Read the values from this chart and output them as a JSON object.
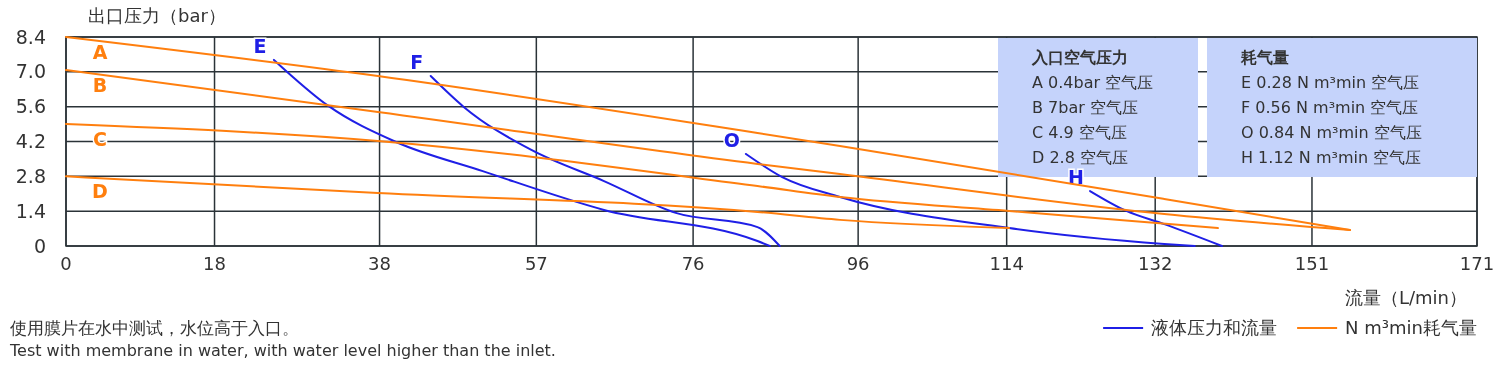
{
  "chart_data": {
    "type": "line",
    "xlabel": "流量（L/min）",
    "ylabel": "出口压力（bar）",
    "xlim": [
      0,
      171
    ],
    "xticks": [
      0,
      18,
      38,
      57,
      76,
      96,
      114,
      132,
      151,
      171
    ],
    "ylim": [
      0,
      8.4
    ],
    "yticks": [
      0,
      1.4,
      2.8,
      4.2,
      5.6,
      {
        "value": 7,
        "label": "7.0"
      },
      8.4
    ],
    "grid": true,
    "marker": "none",
    "line_style": "solid",
    "series": [
      {
        "name": "E",
        "color": "#1f1fe6",
        "x": [
          25.2,
          31.8,
          40,
          50.5,
          65.2,
          83.8,
          85.3
        ],
        "values": [
          7.48,
          5.63,
          4.18,
          3.01,
          1.45,
          0.2,
          0
        ]
      },
      {
        "name": "F",
        "color": "#1f1fe6",
        "x": [
          44.2,
          48.2,
          56.4,
          65.2,
          73.9,
          83.8,
          86.5
        ],
        "values": [
          6.83,
          5.59,
          3.86,
          2.61,
          1.33,
          0.76,
          0
        ]
      },
      {
        "name": "O",
        "color": "#1f1fe6",
        "x": [
          82.4,
          86.8,
          93.8,
          114.3,
          133.1,
          136.8
        ],
        "values": [
          3.7,
          2.77,
          1.97,
          0.72,
          0.08,
          0
        ]
      },
      {
        "name": "H",
        "color": "#1f1fe6",
        "x": [
          124.1,
          128.5,
          133.1,
          140.1
        ],
        "values": [
          2.21,
          1.41,
          0.88,
          0
        ]
      },
      {
        "name": "A",
        "color": "#ff7f0e",
        "x": [
          0,
          37.8,
          83.8,
          93.8,
          133.1,
          155.6
        ],
        "values": [
          8.4,
          6.83,
          4.54,
          4.02,
          1.89,
          0.64
        ]
      },
      {
        "name": "B",
        "color": "#ff7f0e",
        "x": [
          0,
          37.8,
          83.8,
          93.8,
          133.1,
          155.6
        ],
        "values": [
          7.07,
          5.39,
          3.3,
          2.89,
          1.29,
          0.64
        ]
      },
      {
        "name": "C",
        "color": "#ff7f0e",
        "x": [
          0,
          37.8,
          83.8,
          93.8,
          114.3,
          139.6
        ],
        "values": [
          4.9,
          4.22,
          2.41,
          1.97,
          1.41,
          0.72
        ]
      },
      {
        "name": "D",
        "color": "#ff7f0e",
        "x": [
          0,
          37.8,
          83.8,
          93.8,
          114.3
        ],
        "values": [
          2.8,
          2.13,
          1.37,
          1.05,
          0.72
        ]
      }
    ],
    "annotations": [
      "入口空气压力",
      "A 0.4bar 空气压",
      "B 7bar 空气压",
      "C 4.9 空气压",
      "D 2.8 空气压",
      "耗气量",
      "E 0.28 N m³min 空气压",
      "F 0.56 N  m³min 空气压",
      "O 0.84 N  m³min 空气压",
      "H 1.12 N  m³min 空气压",
      "液体压力和流量",
      "N m³min耗气量",
      "使用膜片在水中测试，水位高于入口。",
      "Test with membrane in water, with water level higher than the inlet."
    ]
  }
}
